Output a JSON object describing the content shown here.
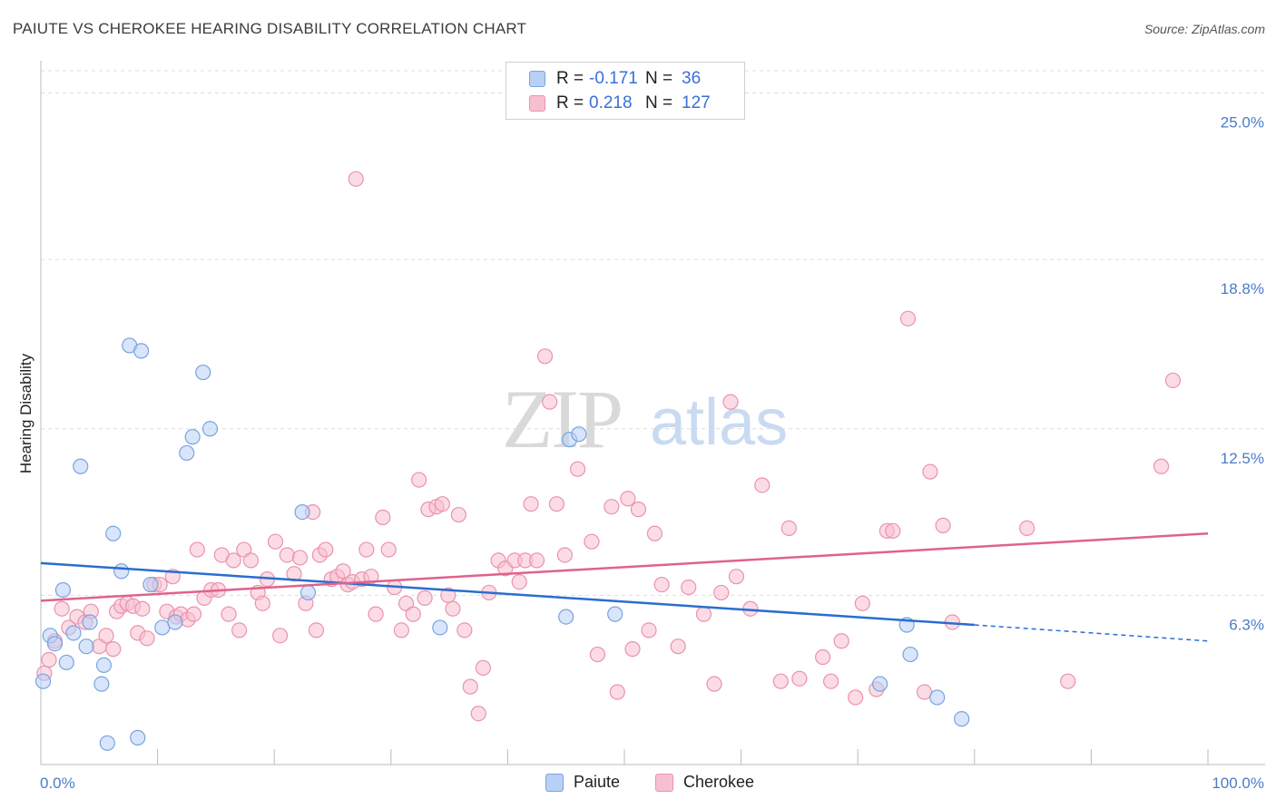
{
  "title": "PAIUTE VS CHEROKEE HEARING DISABILITY CORRELATION CHART",
  "source": "Source: ZipAtlas.com",
  "watermark": {
    "zip": "ZIP",
    "atlas": "atlas"
  },
  "colors": {
    "paiute_fill": "#b8d0f5",
    "paiute_stroke": "#7aa3e0",
    "paiute_line": "#2a6dd0",
    "cherokee_fill": "#f7c0d0",
    "cherokee_stroke": "#eb92ad",
    "cherokee_line": "#e0628c",
    "grid": "#dddddd",
    "tick_label": "#4a7cc9"
  },
  "legend": {
    "rows": [
      {
        "r_label": "R =",
        "r_value": "-0.171",
        "n_label": "N =",
        "n_value": "36"
      },
      {
        "r_label": "R =",
        "r_value": "0.218",
        "n_label": "N =",
        "n_value": "127"
      }
    ],
    "series": [
      "Paiute",
      "Cherokee"
    ]
  },
  "chart_data": {
    "type": "scatter",
    "title": "PAIUTE VS CHEROKEE HEARING DISABILITY CORRELATION CHART",
    "xlabel": "",
    "ylabel": "Hearing Disability",
    "xlim": [
      0,
      100
    ],
    "ylim": [
      0,
      26.2
    ],
    "x_tick_labels": [
      "0.0%",
      "100.0%"
    ],
    "y_ticks": [
      6.3,
      12.5,
      18.8,
      25.0
    ],
    "y_tick_labels": [
      "6.3%",
      "12.5%",
      "18.8%",
      "25.0%"
    ],
    "grid": true,
    "legend_position": "top-center",
    "series": [
      {
        "name": "Paiute",
        "r": -0.171,
        "n": 36,
        "trend": {
          "x0": 0,
          "y0": 7.5,
          "x1": 80,
          "y1": 5.2,
          "dashed_to_x": 100,
          "dashed_to_y": 4.6
        },
        "points": [
          [
            0.2,
            3.1
          ],
          [
            0.8,
            4.8
          ],
          [
            1.2,
            4.5
          ],
          [
            1.9,
            6.5
          ],
          [
            2.2,
            3.8
          ],
          [
            2.8,
            4.9
          ],
          [
            3.4,
            11.1
          ],
          [
            3.9,
            4.4
          ],
          [
            4.2,
            5.3
          ],
          [
            5.2,
            3.0
          ],
          [
            5.4,
            3.7
          ],
          [
            5.7,
            0.8
          ],
          [
            6.2,
            8.6
          ],
          [
            6.9,
            7.2
          ],
          [
            7.6,
            15.6
          ],
          [
            8.3,
            1.0
          ],
          [
            8.6,
            15.4
          ],
          [
            9.4,
            6.7
          ],
          [
            10.4,
            5.1
          ],
          [
            11.5,
            5.3
          ],
          [
            12.5,
            11.6
          ],
          [
            13.0,
            12.2
          ],
          [
            13.9,
            14.6
          ],
          [
            14.5,
            12.5
          ],
          [
            22.4,
            9.4
          ],
          [
            22.9,
            6.4
          ],
          [
            34.2,
            5.1
          ],
          [
            45.0,
            5.5
          ],
          [
            45.3,
            12.1
          ],
          [
            46.1,
            12.3
          ],
          [
            49.2,
            5.6
          ],
          [
            71.9,
            3.0
          ],
          [
            74.2,
            5.2
          ],
          [
            74.5,
            4.1
          ],
          [
            76.8,
            2.5
          ],
          [
            78.9,
            1.7
          ]
        ]
      },
      {
        "name": "Cherokee",
        "r": 0.218,
        "n": 127,
        "trend": {
          "x0": 0,
          "y0": 6.1,
          "x1": 100,
          "y1": 8.6
        },
        "points": [
          [
            0.3,
            3.4
          ],
          [
            0.7,
            3.9
          ],
          [
            1.2,
            4.6
          ],
          [
            1.8,
            5.8
          ],
          [
            2.4,
            5.1
          ],
          [
            3.1,
            5.5
          ],
          [
            3.8,
            5.3
          ],
          [
            4.3,
            5.7
          ],
          [
            5.0,
            4.4
          ],
          [
            5.6,
            4.8
          ],
          [
            6.2,
            4.3
          ],
          [
            6.5,
            5.7
          ],
          [
            6.9,
            5.9
          ],
          [
            7.4,
            6.0
          ],
          [
            7.9,
            5.9
          ],
          [
            8.3,
            4.9
          ],
          [
            8.7,
            5.8
          ],
          [
            9.1,
            4.7
          ],
          [
            9.7,
            6.7
          ],
          [
            10.2,
            6.7
          ],
          [
            10.8,
            5.7
          ],
          [
            11.3,
            7.0
          ],
          [
            11.6,
            5.5
          ],
          [
            12.0,
            5.6
          ],
          [
            12.6,
            5.4
          ],
          [
            13.1,
            5.6
          ],
          [
            13.4,
            8.0
          ],
          [
            14.0,
            6.2
          ],
          [
            14.6,
            6.5
          ],
          [
            15.2,
            6.5
          ],
          [
            15.5,
            7.8
          ],
          [
            16.1,
            5.6
          ],
          [
            16.5,
            7.6
          ],
          [
            17.0,
            5.0
          ],
          [
            17.4,
            8.0
          ],
          [
            18.0,
            7.6
          ],
          [
            18.6,
            6.4
          ],
          [
            19.0,
            6.0
          ],
          [
            19.4,
            6.9
          ],
          [
            20.1,
            8.3
          ],
          [
            20.5,
            4.8
          ],
          [
            21.1,
            7.8
          ],
          [
            21.7,
            7.1
          ],
          [
            22.2,
            7.7
          ],
          [
            22.7,
            6.0
          ],
          [
            23.3,
            9.4
          ],
          [
            23.6,
            5.0
          ],
          [
            23.9,
            7.8
          ],
          [
            24.4,
            8.0
          ],
          [
            24.9,
            6.9
          ],
          [
            25.4,
            7.0
          ],
          [
            25.9,
            7.2
          ],
          [
            26.3,
            6.7
          ],
          [
            26.7,
            6.8
          ],
          [
            27.0,
            21.8
          ],
          [
            27.5,
            6.9
          ],
          [
            27.9,
            8.0
          ],
          [
            28.3,
            7.0
          ],
          [
            28.7,
            5.6
          ],
          [
            29.3,
            9.2
          ],
          [
            29.8,
            8.0
          ],
          [
            30.3,
            6.6
          ],
          [
            30.9,
            5.0
          ],
          [
            31.3,
            6.0
          ],
          [
            31.9,
            5.6
          ],
          [
            32.4,
            10.6
          ],
          [
            32.9,
            6.2
          ],
          [
            33.2,
            9.5
          ],
          [
            33.9,
            9.6
          ],
          [
            34.4,
            9.7
          ],
          [
            34.9,
            6.3
          ],
          [
            35.3,
            5.8
          ],
          [
            35.8,
            9.3
          ],
          [
            36.3,
            5.0
          ],
          [
            36.8,
            2.9
          ],
          [
            37.5,
            1.9
          ],
          [
            37.9,
            3.6
          ],
          [
            38.4,
            6.4
          ],
          [
            39.2,
            7.6
          ],
          [
            39.8,
            7.3
          ],
          [
            40.6,
            7.6
          ],
          [
            41.0,
            6.8
          ],
          [
            41.5,
            7.6
          ],
          [
            42.0,
            9.7
          ],
          [
            42.5,
            7.6
          ],
          [
            43.2,
            15.2
          ],
          [
            43.6,
            13.5
          ],
          [
            44.2,
            9.7
          ],
          [
            44.9,
            7.8
          ],
          [
            46.0,
            11.0
          ],
          [
            47.2,
            8.3
          ],
          [
            47.7,
            4.1
          ],
          [
            48.9,
            9.6
          ],
          [
            49.4,
            2.7
          ],
          [
            50.3,
            9.9
          ],
          [
            50.7,
            4.3
          ],
          [
            51.2,
            9.5
          ],
          [
            52.1,
            5.0
          ],
          [
            52.6,
            8.6
          ],
          [
            53.2,
            6.7
          ],
          [
            54.6,
            4.4
          ],
          [
            55.5,
            6.6
          ],
          [
            56.8,
            5.6
          ],
          [
            57.7,
            3.0
          ],
          [
            58.3,
            6.4
          ],
          [
            59.1,
            13.5
          ],
          [
            59.6,
            7.0
          ],
          [
            60.8,
            5.8
          ],
          [
            61.8,
            10.4
          ],
          [
            63.4,
            3.1
          ],
          [
            64.1,
            8.8
          ],
          [
            65.0,
            3.2
          ],
          [
            67.0,
            4.0
          ],
          [
            67.7,
            3.1
          ],
          [
            68.6,
            4.6
          ],
          [
            69.8,
            2.5
          ],
          [
            70.4,
            6.0
          ],
          [
            71.6,
            2.8
          ],
          [
            72.5,
            8.7
          ],
          [
            73.0,
            8.7
          ],
          [
            74.3,
            16.6
          ],
          [
            75.7,
            2.7
          ],
          [
            76.2,
            10.9
          ],
          [
            77.3,
            8.9
          ],
          [
            78.1,
            5.3
          ],
          [
            84.5,
            8.8
          ],
          [
            88.0,
            3.1
          ],
          [
            96.0,
            11.1
          ],
          [
            97.0,
            14.3
          ]
        ]
      }
    ]
  }
}
